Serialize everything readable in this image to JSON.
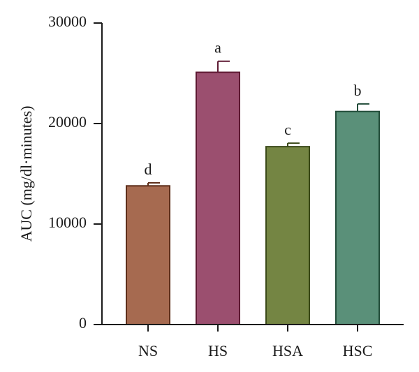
{
  "chart_data": {
    "type": "bar",
    "title": "",
    "xlabel": "",
    "ylabel": "AUC (mg/dl·minutes)",
    "ylim": [
      0,
      30000
    ],
    "yticks": [
      0,
      10000,
      20000,
      30000
    ],
    "grid": false,
    "categories": [
      "NS",
      "HS",
      "HSA",
      "HSC"
    ],
    "values": [
      13800,
      25100,
      17700,
      21200
    ],
    "errors": [
      300,
      1100,
      350,
      750
    ],
    "significance_letters": [
      "d",
      "a",
      "c",
      "b"
    ],
    "bar_colors": [
      "#a66a50",
      "#9b4f6f",
      "#748543",
      "#5a9079"
    ],
    "edge_colors": [
      "#5e2e1a",
      "#5e1a33",
      "#3b4a1a",
      "#234d3a"
    ]
  }
}
